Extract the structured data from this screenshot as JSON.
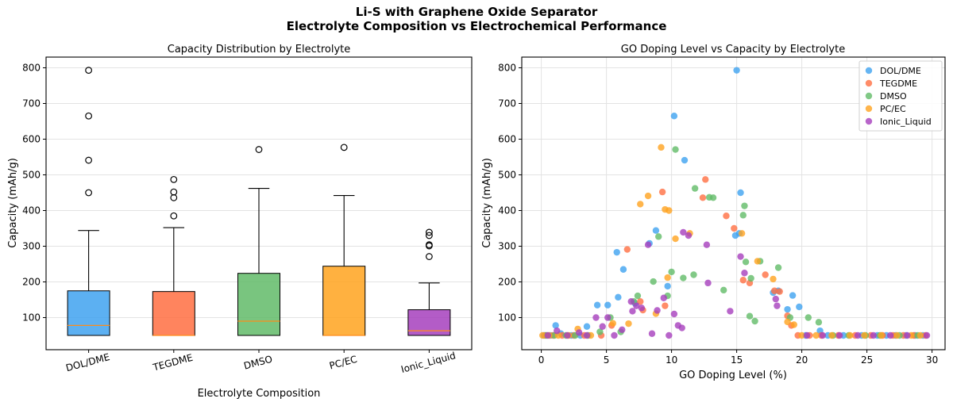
{
  "figure": {
    "title_line1": "Li-S with Graphene Oxide Separator",
    "title_line2": "Electrolyte Composition vs Electrochemical Performance"
  },
  "chart_data": [
    {
      "type": "box",
      "title": "Capacity Distribution by Electrolyte",
      "xlabel": "Electrolyte Composition",
      "ylabel": "Capacity (mAh/g)",
      "ylim": [
        10,
        830
      ],
      "yticks": [
        100,
        200,
        300,
        400,
        500,
        600,
        700,
        800
      ],
      "grid": true,
      "categories": [
        "DOL/DME",
        "TEGDME",
        "DMSO",
        "PC/EC",
        "Ionic_Liquid"
      ],
      "colors": [
        "#3fa2f0",
        "#ff6f42",
        "#62bb68",
        "#ffa31f",
        "#a63fbd"
      ],
      "median_color": "#ff8c1a",
      "boxes": [
        {
          "whisker_low": 50,
          "q1": 50,
          "median": 78,
          "q3": 175,
          "whisker_high": 344,
          "outliers": [
            450,
            541,
            665,
            793
          ]
        },
        {
          "whisker_low": 50,
          "q1": 50,
          "median": 50,
          "q3": 173,
          "whisker_high": 352,
          "outliers": [
            385,
            436,
            452,
            487
          ]
        },
        {
          "whisker_low": 50,
          "q1": 50,
          "median": 90,
          "q3": 224,
          "whisker_high": 462,
          "outliers": [
            571
          ]
        },
        {
          "whisker_low": 50,
          "q1": 50,
          "median": 50,
          "q3": 244,
          "whisker_high": 442,
          "outliers": [
            577
          ]
        },
        {
          "whisker_low": 50,
          "q1": 50,
          "median": 63,
          "q3": 122,
          "whisker_high": 197,
          "outliers": [
            271,
            301,
            304,
            330,
            339
          ]
        }
      ]
    },
    {
      "type": "scatter",
      "title": "GO Doping Level vs Capacity by Electrolyte",
      "xlabel": "GO Doping Level (%)",
      "ylabel": "Capacity (mAh/g)",
      "xlim": [
        -1.5,
        31
      ],
      "ylim": [
        10,
        830
      ],
      "xticks": [
        0,
        5,
        10,
        15,
        20,
        25,
        30
      ],
      "yticks": [
        100,
        200,
        300,
        400,
        500,
        600,
        700,
        800
      ],
      "grid": true,
      "legend_position": "top-right",
      "series": [
        {
          "name": "DOL/DME",
          "color": "#3fa2f0",
          "points": [
            [
              0.2,
              50
            ],
            [
              0.7,
              50
            ],
            [
              1.1,
              78
            ],
            [
              1.5,
              55
            ],
            [
              2.3,
              50
            ],
            [
              3.0,
              50
            ],
            [
              3.5,
              75
            ],
            [
              4.3,
              135
            ],
            [
              5.1,
              135
            ],
            [
              5.8,
              283
            ],
            [
              6.3,
              235
            ],
            [
              5.9,
              157
            ],
            [
              7.2,
              140
            ],
            [
              8.3,
              308
            ],
            [
              8.8,
              344
            ],
            [
              9.7,
              188
            ],
            [
              10.2,
              665
            ],
            [
              11.0,
              541
            ],
            [
              15.0,
              793
            ],
            [
              15.3,
              450
            ],
            [
              14.9,
              330
            ],
            [
              15.2,
              336
            ],
            [
              17.8,
              170
            ],
            [
              18.2,
              175
            ],
            [
              18.9,
              123
            ],
            [
              19.3,
              162
            ],
            [
              19.8,
              130
            ],
            [
              20.3,
              50
            ],
            [
              21.4,
              63
            ],
            [
              22.0,
              50
            ],
            [
              23.2,
              50
            ],
            [
              24.6,
              50
            ],
            [
              25.8,
              50
            ],
            [
              26.5,
              50
            ],
            [
              27.2,
              50
            ],
            [
              28.0,
              50
            ],
            [
              28.7,
              50
            ],
            [
              29.3,
              50
            ]
          ]
        },
        {
          "name": "TEGDME",
          "color": "#ff6f42",
          "points": [
            [
              0.3,
              50
            ],
            [
              0.9,
              50
            ],
            [
              1.6,
              50
            ],
            [
              2.5,
              50
            ],
            [
              3.3,
              50
            ],
            [
              4.6,
              50
            ],
            [
              5.4,
              78
            ],
            [
              6.6,
              291
            ],
            [
              7.6,
              145
            ],
            [
              7.8,
              121
            ],
            [
              9.3,
              452
            ],
            [
              9.5,
              133
            ],
            [
              12.4,
              436
            ],
            [
              12.6,
              487
            ],
            [
              14.2,
              385
            ],
            [
              14.8,
              350
            ],
            [
              15.5,
              205
            ],
            [
              16.0,
              197
            ],
            [
              17.2,
              220
            ],
            [
              17.9,
              175
            ],
            [
              18.3,
              173
            ],
            [
              18.9,
              105
            ],
            [
              19.2,
              78
            ],
            [
              19.7,
              50
            ],
            [
              20.6,
              50
            ],
            [
              21.5,
              50
            ],
            [
              22.8,
              50
            ],
            [
              24.1,
              50
            ],
            [
              25.3,
              50
            ],
            [
              26.2,
              50
            ],
            [
              27.0,
              50
            ],
            [
              27.8,
              50
            ],
            [
              28.6,
              50
            ],
            [
              29.5,
              50
            ]
          ]
        },
        {
          "name": "DMSO",
          "color": "#62bb68",
          "points": [
            [
              0.4,
              50
            ],
            [
              1.0,
              50
            ],
            [
              1.9,
              50
            ],
            [
              2.6,
              50
            ],
            [
              3.6,
              50
            ],
            [
              4.5,
              60
            ],
            [
              5.3,
              100
            ],
            [
              6.1,
              60
            ],
            [
              7.1,
              145
            ],
            [
              7.4,
              161
            ],
            [
              8.6,
              201
            ],
            [
              9.0,
              327
            ],
            [
              9.7,
              161
            ],
            [
              10.0,
              228
            ],
            [
              10.3,
              571
            ],
            [
              10.9,
              211
            ],
            [
              11.7,
              220
            ],
            [
              11.8,
              462
            ],
            [
              12.9,
              437
            ],
            [
              13.2,
              436
            ],
            [
              14.0,
              177
            ],
            [
              15.5,
              387
            ],
            [
              15.6,
              413
            ],
            [
              15.7,
              256
            ],
            [
              16.0,
              104
            ],
            [
              16.1,
              210
            ],
            [
              16.4,
              90
            ],
            [
              16.8,
              258
            ],
            [
              18.2,
              240
            ],
            [
              19.1,
              100
            ],
            [
              20.5,
              100
            ],
            [
              21.3,
              87
            ],
            [
              22.4,
              50
            ],
            [
              23.6,
              50
            ],
            [
              24.9,
              50
            ],
            [
              26.0,
              50
            ],
            [
              27.5,
              50
            ],
            [
              28.9,
              50
            ]
          ]
        },
        {
          "name": "PC/EC",
          "color": "#ffa31f",
          "points": [
            [
              0.1,
              50
            ],
            [
              0.6,
              50
            ],
            [
              1.3,
              50
            ],
            [
              2.1,
              50
            ],
            [
              2.8,
              68
            ],
            [
              3.8,
              50
            ],
            [
              5.5,
              84
            ],
            [
              6.7,
              83
            ],
            [
              7.6,
              418
            ],
            [
              8.2,
              441
            ],
            [
              8.8,
              111
            ],
            [
              9.2,
              577
            ],
            [
              9.5,
              403
            ],
            [
              9.8,
              400
            ],
            [
              9.7,
              212
            ],
            [
              10.3,
              321
            ],
            [
              11.4,
              336
            ],
            [
              15.4,
              336
            ],
            [
              16.6,
              258
            ],
            [
              17.8,
              208
            ],
            [
              18.9,
              88
            ],
            [
              19.4,
              80
            ],
            [
              20.0,
              50
            ],
            [
              21.1,
              50
            ],
            [
              22.3,
              50
            ],
            [
              23.7,
              50
            ],
            [
              24.8,
              50
            ],
            [
              26.1,
              50
            ],
            [
              27.3,
              50
            ],
            [
              28.4,
              50
            ],
            [
              29.1,
              50
            ]
          ]
        },
        {
          "name": "Ionic_Liquid",
          "color": "#a63fbd",
          "points": [
            [
              0.5,
              50
            ],
            [
              1.2,
              63
            ],
            [
              2.0,
              50
            ],
            [
              2.9,
              58
            ],
            [
              3.5,
              50
            ],
            [
              4.2,
              100
            ],
            [
              4.7,
              75
            ],
            [
              5.1,
              100
            ],
            [
              5.6,
              50
            ],
            [
              6.2,
              66
            ],
            [
              6.9,
              145
            ],
            [
              7.3,
              133
            ],
            [
              7.0,
              118
            ],
            [
              7.7,
              127
            ],
            [
              8.5,
              55
            ],
            [
              8.2,
              304
            ],
            [
              8.9,
              120
            ],
            [
              9.4,
              155
            ],
            [
              9.8,
              50
            ],
            [
              10.2,
              110
            ],
            [
              10.5,
              78
            ],
            [
              10.8,
              71
            ],
            [
              10.9,
              339
            ],
            [
              11.3,
              330
            ],
            [
              12.7,
              304
            ],
            [
              12.8,
              197
            ],
            [
              14.5,
              118
            ],
            [
              15.3,
              271
            ],
            [
              15.6,
              225
            ],
            [
              18.0,
              152
            ],
            [
              18.1,
              133
            ],
            [
              20.4,
              50
            ],
            [
              21.6,
              50
            ],
            [
              22.9,
              50
            ],
            [
              24.3,
              50
            ],
            [
              25.5,
              50
            ],
            [
              26.8,
              50
            ],
            [
              28.1,
              50
            ],
            [
              29.6,
              50
            ]
          ]
        }
      ]
    }
  ]
}
